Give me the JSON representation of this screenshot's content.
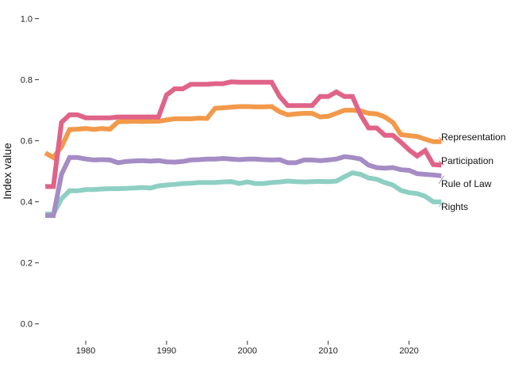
{
  "chart_data": {
    "type": "line",
    "title": "",
    "xlabel": "",
    "ylabel": "Index value",
    "xlim": [
      1974.5,
      2033
    ],
    "ylim": [
      -0.05,
      1.03
    ],
    "x_ticks": [
      1980,
      1990,
      2000,
      2010,
      2020
    ],
    "y_ticks": [
      0.0,
      0.2,
      0.4,
      0.6,
      0.8,
      1.0
    ],
    "y_tick_labels": [
      "0.0",
      "0.2",
      "0.4",
      "0.6",
      "0.8",
      "1.0"
    ],
    "grid": false,
    "legend": "direct-labels-right",
    "x": [
      1975,
      1976,
      1977,
      1978,
      1979,
      1980,
      1981,
      1982,
      1983,
      1984,
      1985,
      1986,
      1987,
      1988,
      1989,
      1990,
      1991,
      1992,
      1993,
      1994,
      1995,
      1996,
      1997,
      1998,
      1999,
      2000,
      2001,
      2002,
      2003,
      2004,
      2005,
      2006,
      2007,
      2008,
      2009,
      2010,
      2011,
      2012,
      2013,
      2014,
      2015,
      2016,
      2017,
      2018,
      2019,
      2020,
      2021,
      2022,
      2023,
      2024
    ],
    "series": [
      {
        "name": "Representation",
        "color": "#f2994a",
        "values": [
          0.56,
          0.545,
          0.58,
          0.637,
          0.638,
          0.64,
          0.637,
          0.64,
          0.638,
          0.662,
          0.663,
          0.664,
          0.663,
          0.664,
          0.664,
          0.668,
          0.672,
          0.672,
          0.672,
          0.674,
          0.673,
          0.706,
          0.708,
          0.71,
          0.712,
          0.712,
          0.711,
          0.711,
          0.712,
          0.695,
          0.685,
          0.688,
          0.69,
          0.69,
          0.678,
          0.68,
          0.69,
          0.7,
          0.7,
          0.698,
          0.69,
          0.688,
          0.678,
          0.66,
          0.62,
          0.617,
          0.614,
          0.605,
          0.597,
          0.597
        ]
      },
      {
        "name": "Participation",
        "color": "#e06388",
        "values": [
          0.45,
          0.45,
          0.66,
          0.685,
          0.685,
          0.675,
          0.675,
          0.675,
          0.675,
          0.678,
          0.678,
          0.678,
          0.678,
          0.678,
          0.678,
          0.75,
          0.77,
          0.77,
          0.785,
          0.785,
          0.785,
          0.787,
          0.787,
          0.793,
          0.792,
          0.792,
          0.792,
          0.792,
          0.792,
          0.745,
          0.715,
          0.715,
          0.715,
          0.715,
          0.745,
          0.745,
          0.76,
          0.745,
          0.745,
          0.685,
          0.642,
          0.642,
          0.618,
          0.618,
          0.595,
          0.57,
          0.55,
          0.568,
          0.522,
          0.52
        ]
      },
      {
        "name": "Rule of Law",
        "color": "#a58cc5",
        "values": [
          0.355,
          0.355,
          0.49,
          0.545,
          0.545,
          0.54,
          0.537,
          0.538,
          0.537,
          0.528,
          0.532,
          0.534,
          0.535,
          0.533,
          0.535,
          0.531,
          0.53,
          0.532,
          0.537,
          0.538,
          0.54,
          0.54,
          0.542,
          0.54,
          0.538,
          0.54,
          0.54,
          0.538,
          0.537,
          0.538,
          0.528,
          0.528,
          0.537,
          0.537,
          0.535,
          0.537,
          0.54,
          0.548,
          0.545,
          0.54,
          0.52,
          0.512,
          0.51,
          0.512,
          0.505,
          0.503,
          0.492,
          0.49,
          0.488,
          0.485
        ]
      },
      {
        "name": "Rights",
        "color": "#8ecfc3",
        "values": [
          0.36,
          0.36,
          0.41,
          0.436,
          0.436,
          0.44,
          0.44,
          0.442,
          0.443,
          0.443,
          0.444,
          0.445,
          0.447,
          0.445,
          0.452,
          0.455,
          0.457,
          0.46,
          0.461,
          0.463,
          0.463,
          0.463,
          0.465,
          0.466,
          0.46,
          0.465,
          0.46,
          0.46,
          0.463,
          0.465,
          0.468,
          0.466,
          0.465,
          0.466,
          0.467,
          0.466,
          0.468,
          0.482,
          0.495,
          0.49,
          0.478,
          0.474,
          0.463,
          0.455,
          0.437,
          0.43,
          0.427,
          0.418,
          0.4,
          0.4
        ]
      }
    ]
  }
}
